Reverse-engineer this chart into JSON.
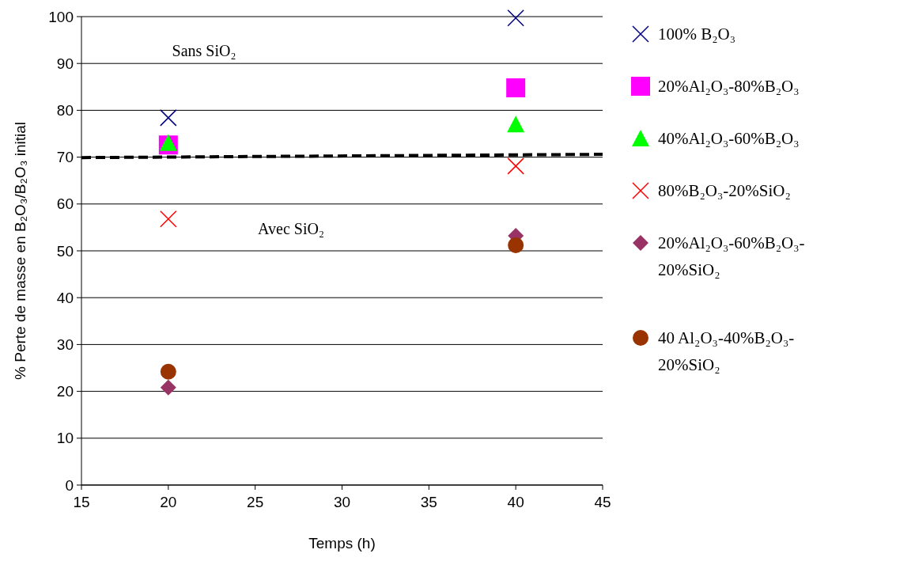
{
  "chart_data": {
    "type": "scatter",
    "xlabel": "Temps (h)",
    "ylabel": "% Perte de masse en B₂O₃/B₂O₃ initial",
    "xlim": [
      15,
      45
    ],
    "xticks": [
      15,
      20,
      25,
      30,
      35,
      40,
      45
    ],
    "ylim": [
      0,
      100
    ],
    "yticks": [
      0,
      10,
      20,
      30,
      40,
      50,
      60,
      70,
      80,
      90,
      100
    ],
    "grid": "y",
    "legend": "right",
    "annotations": [
      "Sans SiO₂",
      "Avec SiO₂"
    ],
    "series": [
      {
        "name": "100% B₂O₃",
        "color": "#000080",
        "marker": "cross",
        "x": [
          20,
          40
        ],
        "values": [
          78.4,
          99.7
        ]
      },
      {
        "name": "20%Al₂O₃-80%B₂O₃",
        "color": "#ff00ff",
        "marker": "square",
        "x": [
          20,
          40
        ],
        "values": [
          72.6,
          84.8
        ]
      },
      {
        "name": "40%Al₂O₃-60%B₂O₃",
        "color": "#00ff00",
        "marker": "triangle",
        "x": [
          20,
          40
        ],
        "values": [
          73,
          77
        ]
      },
      {
        "name": "80%B₂O₃-20%SiO₂",
        "color": "#ff0000",
        "marker": "cross",
        "x": [
          20,
          40
        ],
        "values": [
          56.8,
          68.1
        ]
      },
      {
        "name": "20%Al₂O₃-60%B₂O₃-20%SiO₂",
        "color": "#993366",
        "marker": "diamond",
        "x": [
          20,
          40
        ],
        "values": [
          20.8,
          53.2
        ]
      },
      {
        "name": "40 Al₂O₃-40%B₂O₃-20%SiO₂",
        "color": "#993300",
        "marker": "circle",
        "x": [
          20,
          40
        ],
        "values": [
          24.2,
          51.2
        ]
      },
      {
        "type": "line",
        "color": "#000000",
        "line_style": "dashed",
        "marker": "none",
        "x": [
          15,
          45
        ],
        "values": [
          69.9,
          70.6
        ]
      }
    ]
  }
}
